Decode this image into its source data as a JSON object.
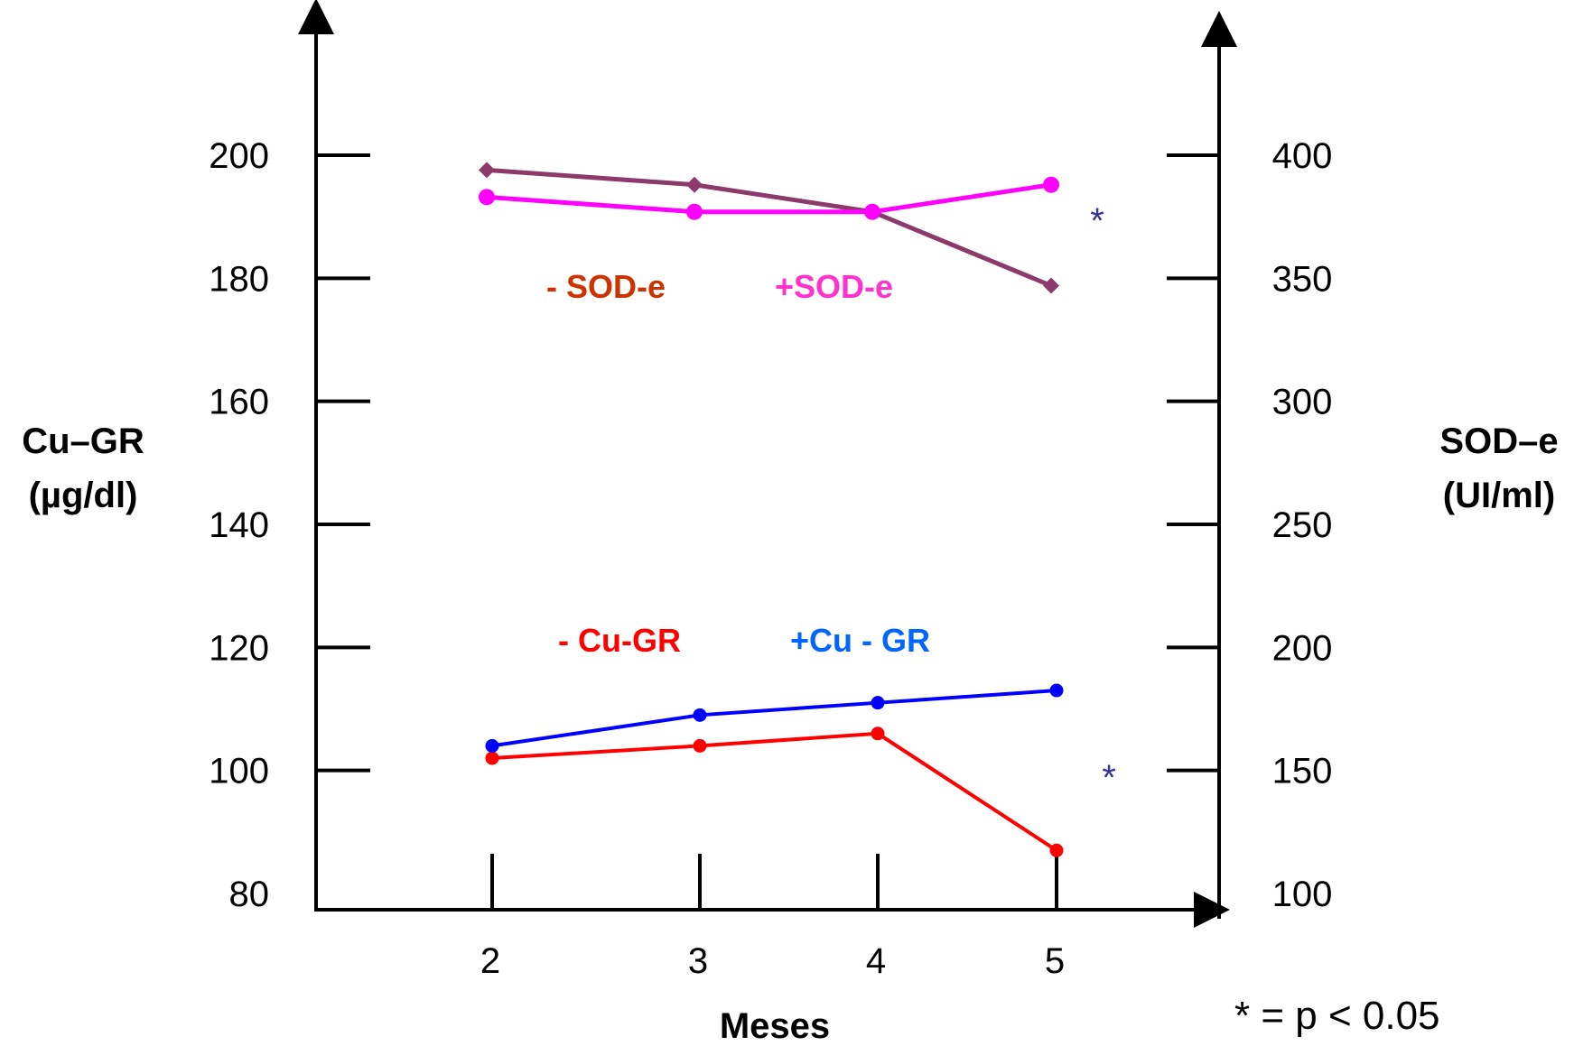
{
  "chart_data": {
    "type": "line",
    "xlabel": "Meses",
    "x": [
      2,
      3,
      4,
      5
    ],
    "x_tick_labels": [
      "2",
      "3",
      "4",
      "5"
    ],
    "left_axis": {
      "label_line1": "Cu–GR",
      "label_line2": "(µg/dl)",
      "ticks": [
        80,
        100,
        120,
        140,
        160,
        180,
        200
      ],
      "tick_labels": [
        "80",
        "100",
        "120",
        "140",
        "160",
        "180",
        "200"
      ],
      "ylim": [
        80,
        200
      ]
    },
    "right_axis": {
      "label_line1": "SOD–e",
      "label_line2": "(UI/ml)",
      "ticks": [
        100,
        150,
        200,
        250,
        300,
        350,
        400
      ],
      "tick_labels": [
        "100",
        "150",
        "200",
        "250",
        "300",
        "350",
        "400"
      ],
      "ylim": [
        100,
        400
      ]
    },
    "series": [
      {
        "name": "- SOD-e",
        "axis": "right",
        "color": "#8B3A6B",
        "marker": "diamond",
        "x": [
          2,
          3,
          4,
          5
        ],
        "values": [
          394,
          388,
          377,
          347
        ]
      },
      {
        "name": "+SOD-e",
        "axis": "right",
        "color": "#FF00FF",
        "marker": "circle",
        "x": [
          2,
          3,
          4,
          5
        ],
        "values": [
          383,
          377,
          377,
          388
        ]
      },
      {
        "name": "- Cu-GR",
        "axis": "left",
        "color": "#FF0000",
        "marker": "circle",
        "x": [
          2,
          3,
          4,
          5
        ],
        "values": [
          102,
          104,
          106,
          87
        ]
      },
      {
        "name": "+Cu - GR",
        "axis": "left",
        "color": "#0000FF",
        "marker": "circle",
        "x": [
          2,
          3,
          4,
          5
        ],
        "values": [
          104,
          109,
          111,
          113
        ]
      }
    ],
    "series_label_colors": {
      "- SOD-e": "#CC3300",
      "+SOD-e": "#FF33CC",
      "- Cu-GR": "#FF0000",
      "+Cu - GR": "#0066FF"
    },
    "significance_marker": "*",
    "footnote": "* = p < 0.05"
  }
}
